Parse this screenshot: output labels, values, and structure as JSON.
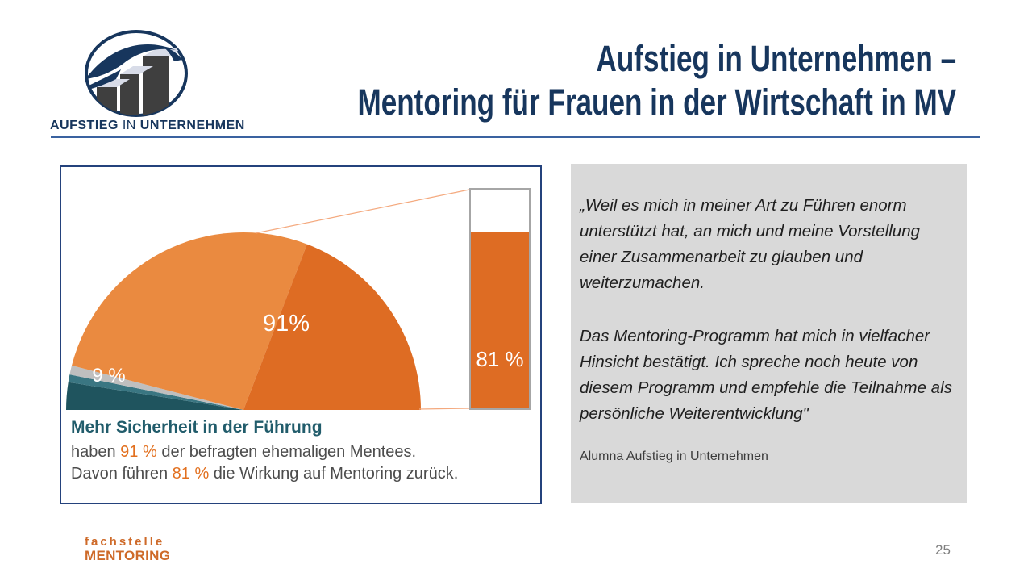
{
  "header": {
    "brand_word1": "AUFSTIEG",
    "brand_word2": "IN",
    "brand_word3": "UNTERNEHMEN",
    "title_line1": "Aufstieg in Unternehmen –",
    "title_line2": "Mentoring für Frauen in der Wirtschaft in MV",
    "title_color": "#17365D"
  },
  "chart_data": {
    "type": "pie",
    "subtype": "half-pie-with-bar-of-pie",
    "title": "Mehr Sicherheit in der Führung",
    "slices": [
      {
        "label": "91%",
        "value": 91
      },
      {
        "label": "9 %",
        "value": 9
      }
    ],
    "pie_label_91": "91%",
    "pie_label_9": "9 %",
    "pie_segments": [
      {
        "name": "teal-dark",
        "sweep_deg": 9,
        "color": "#1F545E"
      },
      {
        "name": "teal-light",
        "sweep_deg": 2.5,
        "color": "#3A7682"
      },
      {
        "name": "gray",
        "sweep_deg": 3,
        "color": "#BFBFBF"
      },
      {
        "name": "orange-light",
        "sweep_deg": 96.5,
        "color": "#EA8A40"
      },
      {
        "name": "orange-dark",
        "sweep_deg": 69,
        "color": "#DE6C23"
      }
    ],
    "bar_of_pie": {
      "label": "81 %",
      "value": 81,
      "max": 100,
      "fill": "#DE6C23",
      "rest_color": "#FFFFFF",
      "border": "#A6A6A6"
    },
    "callout_color": "#F4A97E",
    "caption_heading": "Mehr Sicherheit in der Führung",
    "caption_line2": {
      "pre": "haben ",
      "stat": "91 %",
      "post": " der befragten ehemaligen Mentees."
    },
    "caption_line3": {
      "pre": "Davon führen ",
      "stat": "81 %",
      "post": " die Wirkung auf Mentoring zurück."
    },
    "accent_orange": "#E2701F",
    "heading_teal": "#215C6B",
    "legend": "none",
    "axes": "none"
  },
  "quote": {
    "paragraph1": "„Weil es mich in meiner Art zu Führen enorm unterstützt hat, an mich und meine Vorstellung einer Zusammenarbeit zu glauben und weiterzumachen.",
    "paragraph2": "Das Mentoring-Programm hat mich in vielfacher Hinsicht bestätigt. Ich spreche noch heute von diesem Programm und empfehle die Teilnahme als persönliche Weiterentwicklung\"",
    "attribution": "Alumna Aufstieg in Unternehmen",
    "bg_color": "#D9D9D9"
  },
  "footer": {
    "fachstelle_line1": "fachstelle",
    "fachstelle_line2": "MENTORING",
    "page_number": "25"
  }
}
